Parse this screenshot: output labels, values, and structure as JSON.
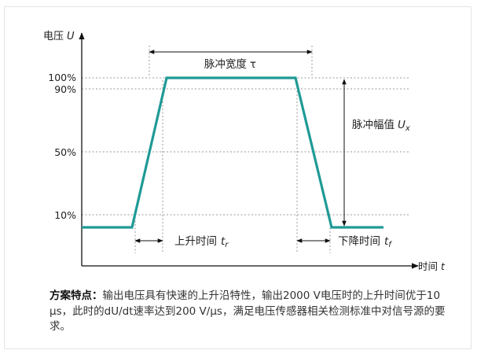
{
  "diagram": {
    "y_axis": {
      "label": "电压",
      "symbol": "U"
    },
    "x_axis": {
      "label": "时间",
      "symbol": "t"
    },
    "levels": [
      "100%",
      "90%",
      "50%",
      "10%"
    ],
    "pulse_width": {
      "label": "脉冲宽度",
      "symbol": "τ"
    },
    "amplitude": {
      "label": "脉冲幅值",
      "symbol": "U",
      "sub": "x"
    },
    "rise_time": {
      "label": "上升时间",
      "symbol": "t",
      "sub": "r"
    },
    "fall_time": {
      "label": "下降时间",
      "symbol": "t",
      "sub": "f"
    }
  },
  "caption": {
    "title": "方案特点：",
    "body": "输出电压具有快速的上升沿特性，输出2000 V电压时的上升时间优于10 μs，此时的dU/dt速率达到200 V/μs，满足电压传感器相关检测标准中对信号源的要求。"
  },
  "colors": {
    "waveform": "#1f9a96",
    "axis": "#111111",
    "guide": "#9a9a9a"
  }
}
